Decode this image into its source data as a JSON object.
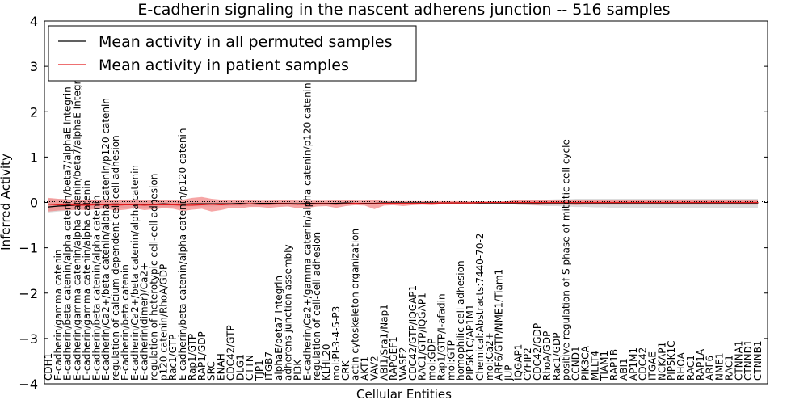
{
  "chart_data": {
    "type": "line",
    "title": "E-cadherin signaling in the nascent adherens junction -- 516 samples",
    "xlabel": "Cellular Entities",
    "ylabel": "Inferred Activity",
    "ylim": [
      -4,
      4
    ],
    "yticks": [
      -4,
      -3,
      -2,
      -1,
      0,
      1,
      2,
      3,
      4
    ],
    "grid": false,
    "legend_position": "top-left",
    "categories": [
      "CDH1",
      "E-cadherin/gamma catenin",
      "E-cadherin/beta catenin/alpha catenin/beta7/alphaE Integrin",
      "E-cadherin/gamma catenin/alpha catenin/beta7/alphaE Integrin",
      "E-cadherin/gamma catenin/alpha catenin",
      "E-cadherin/beta catenin/alpha catenin",
      "E-cadherin/Ca2+/beta catenin/alpha catenin/p120 catenin",
      "regulation of calcium-dependent cell-cell adhesion",
      "E-cadherin/beta catenin",
      "E-cadherin/Ca2+/beta catenin/alpha catenin",
      "E-cadherin(dimer)/Ca2+",
      "regulation of heterotypic cell-cell adhesion",
      "p120 catenin/RhoA/GDP",
      "Rac1/GTP",
      "E-cadherin/beta catenin/alpha catenin/p120 catenin",
      "Rap1/GTP",
      "RAP1/GDP",
      "SRC",
      "ENAH",
      "CDC42/GTP",
      "DLG1",
      "CTTN",
      "TJP1",
      "ITGB7",
      "alphaE/beta7 Integrin",
      "adherens junction assembly",
      "PI3K",
      "E-cadherin/Ca2+/gamma catenin/alpha catenin/p120 catenin",
      "regulation of cell-cell adhesion",
      "KLHL20",
      "mol:PI-3-4-5-P3",
      "CRK",
      "actin cytoskeleton organization",
      "AKT1",
      "VAV2",
      "ABI1/Sra1/Nap1",
      "RAPGEF1",
      "WASF2",
      "CDC42/GTP/IQGAP1",
      "RAC1/GTP/IQGAP1",
      "mol:GDP",
      "Rap1/GTP/I-afadin",
      "mol:GTP",
      "homophilic cell adhesion",
      "PIP5K1C/AP1M1",
      "Chemical:Abstracts:7440-70-2",
      "mol:Ca2+",
      "ARF6/GTP/NME1/Tiam1",
      "JUP",
      "IQGAP1",
      "CYFIP2",
      "CDC42/GDP",
      "RhoA/GDP",
      "Rac1/GDP",
      "positive regulation of S phase of mitotic cell cycle",
      "CCND1",
      "PIK3CA",
      "MLLT4",
      "TIAM1",
      "RAP1B",
      "ABI1",
      "AP1M1",
      "CDC42",
      "ITGAE",
      "NCKAP1",
      "PIP5K1C",
      "RHOA",
      "RAC1",
      "RAP1A",
      "ARF6",
      "NME1",
      "RAC1",
      "CTNNA1",
      "CTNND1",
      "CTNNB1"
    ],
    "series": [
      {
        "name": "Mean activity in all permuted samples",
        "color": "#000000",
        "values": [
          -0.1,
          -0.08,
          -0.07,
          -0.06,
          -0.05,
          -0.05,
          -0.04,
          -0.05,
          -0.04,
          -0.04,
          -0.05,
          -0.04,
          -0.03,
          -0.04,
          -0.04,
          -0.03,
          -0.03,
          -0.03,
          -0.03,
          -0.03,
          -0.02,
          -0.03,
          -0.02,
          -0.02,
          -0.02,
          -0.02,
          -0.03,
          -0.02,
          -0.02,
          -0.02,
          -0.02,
          -0.01,
          -0.02,
          -0.02,
          -0.02,
          -0.01,
          -0.01,
          -0.01,
          -0.01,
          -0.01,
          -0.01,
          -0.01,
          -0.01,
          -0.01,
          -0.01,
          -0.01,
          -0.01,
          -0.01,
          -0.01,
          -0.01,
          -0.01,
          -0.01,
          -0.01,
          -0.01,
          -0.01,
          -0.01,
          -0.01,
          -0.01,
          -0.01,
          -0.01,
          -0.01,
          -0.01,
          -0.01,
          -0.01,
          -0.01,
          -0.01,
          -0.01,
          -0.01,
          -0.01,
          -0.01,
          -0.01,
          -0.01,
          -0.01,
          -0.01,
          -0.01
        ],
        "band_lower": [
          -0.22,
          -0.2,
          -0.18,
          -0.16,
          -0.15,
          -0.14,
          -0.13,
          -0.13,
          -0.12,
          -0.12,
          -0.12,
          -0.11,
          -0.1,
          -0.1,
          -0.1,
          -0.09,
          -0.09,
          -0.09,
          -0.08,
          -0.08,
          -0.08,
          -0.08,
          -0.07,
          -0.07,
          -0.07,
          -0.07,
          -0.07,
          -0.06,
          -0.06,
          -0.06,
          -0.06,
          -0.05,
          -0.05,
          -0.05,
          -0.05,
          -0.04,
          -0.04,
          -0.04,
          -0.04,
          -0.04,
          -0.04,
          -0.04,
          -0.04,
          -0.04,
          -0.03,
          -0.03,
          -0.03,
          -0.03,
          -0.04,
          -0.05,
          -0.06,
          -0.07,
          -0.08,
          -0.08,
          -0.09,
          -0.1,
          -0.1,
          -0.11,
          -0.11,
          -0.12,
          -0.12,
          -0.12,
          -0.12,
          -0.12,
          -0.12,
          -0.12,
          -0.12,
          -0.12,
          -0.12,
          -0.12,
          -0.12,
          -0.12,
          -0.12,
          -0.12,
          -0.12
        ],
        "band_upper": [
          0.08,
          0.07,
          0.06,
          0.05,
          0.05,
          0.05,
          0.04,
          0.04,
          0.04,
          0.04,
          0.04,
          0.04,
          0.04,
          0.03,
          0.03,
          0.03,
          0.03,
          0.03,
          0.03,
          0.03,
          0.03,
          0.03,
          0.03,
          0.03,
          0.03,
          0.03,
          0.03,
          0.03,
          0.03,
          0.03,
          0.03,
          0.03,
          0.03,
          0.03,
          0.03,
          0.03,
          0.03,
          0.03,
          0.03,
          0.02,
          0.02,
          0.02,
          0.02,
          0.02,
          0.02,
          0.02,
          0.02,
          0.02,
          0.03,
          0.04,
          0.05,
          0.06,
          0.06,
          0.07,
          0.07,
          0.08,
          0.08,
          0.08,
          0.08,
          0.08,
          0.08,
          0.08,
          0.08,
          0.08,
          0.08,
          0.08,
          0.08,
          0.08,
          0.08,
          0.08,
          0.08,
          0.08,
          0.08,
          0.08,
          0.08
        ],
        "band_color": "#bfbfbf"
      },
      {
        "name": "Mean activity in patient samples",
        "color": "#e31a1c",
        "values": [
          -0.04,
          -0.05,
          -0.05,
          -0.06,
          -0.06,
          -0.05,
          -0.05,
          -0.06,
          -0.05,
          -0.05,
          -0.06,
          -0.05,
          -0.05,
          -0.05,
          -0.06,
          -0.06,
          -0.05,
          -0.04,
          -0.05,
          -0.04,
          -0.04,
          -0.03,
          -0.04,
          -0.04,
          -0.03,
          -0.03,
          -0.04,
          -0.04,
          -0.03,
          -0.03,
          -0.04,
          -0.03,
          -0.02,
          -0.03,
          -0.03,
          -0.02,
          -0.02,
          -0.02,
          -0.02,
          -0.02,
          -0.02,
          -0.01,
          -0.01,
          -0.01,
          -0.01,
          0.0,
          0.0,
          0.0,
          0.0,
          0.0,
          0.0,
          0.0,
          0.0,
          0.0,
          0.0,
          0.0,
          0.0,
          0.0,
          0.0,
          0.0,
          0.0,
          0.0,
          0.0,
          0.0,
          0.0,
          0.0,
          0.0,
          0.0,
          0.0,
          0.0,
          0.0,
          0.0,
          0.0,
          0.0,
          0.0
        ],
        "band_lower": [
          -0.2,
          -0.18,
          -0.17,
          -0.16,
          -0.17,
          -0.15,
          -0.14,
          -0.18,
          -0.16,
          -0.13,
          -0.17,
          -0.15,
          -0.13,
          -0.14,
          -0.19,
          -0.16,
          -0.14,
          -0.2,
          -0.17,
          -0.12,
          -0.13,
          -0.1,
          -0.1,
          -0.12,
          -0.1,
          -0.09,
          -0.13,
          -0.12,
          -0.09,
          -0.08,
          -0.12,
          -0.08,
          -0.06,
          -0.07,
          -0.15,
          -0.07,
          -0.06,
          -0.08,
          -0.06,
          -0.05,
          -0.06,
          -0.04,
          -0.04,
          -0.03,
          -0.03,
          -0.03,
          -0.02,
          -0.02,
          -0.03,
          -0.05,
          -0.05,
          -0.06,
          -0.05,
          -0.05,
          -0.05,
          -0.06,
          -0.05,
          -0.05,
          -0.05,
          -0.05,
          -0.05,
          -0.05,
          -0.05,
          -0.05,
          -0.05,
          -0.05,
          -0.05,
          -0.05,
          -0.05,
          -0.05,
          -0.05,
          -0.05,
          -0.05,
          -0.05,
          -0.05
        ],
        "band_upper": [
          0.1,
          0.08,
          0.07,
          0.06,
          0.05,
          0.05,
          0.06,
          0.05,
          0.05,
          0.05,
          0.04,
          0.05,
          0.05,
          0.05,
          0.06,
          0.1,
          0.12,
          0.08,
          0.06,
          0.05,
          0.06,
          0.05,
          0.04,
          0.04,
          0.05,
          0.05,
          0.04,
          0.04,
          0.04,
          0.04,
          0.05,
          0.06,
          0.04,
          0.04,
          0.06,
          0.03,
          0.03,
          0.03,
          0.03,
          0.03,
          0.03,
          0.03,
          0.03,
          0.03,
          0.02,
          0.02,
          0.02,
          0.02,
          0.03,
          0.06,
          0.05,
          0.05,
          0.05,
          0.05,
          0.05,
          0.05,
          0.05,
          0.05,
          0.05,
          0.05,
          0.05,
          0.05,
          0.05,
          0.05,
          0.05,
          0.05,
          0.05,
          0.05,
          0.05,
          0.05,
          0.05,
          0.05,
          0.05,
          0.05,
          0.05
        ],
        "band_color": "#f28080"
      }
    ]
  }
}
